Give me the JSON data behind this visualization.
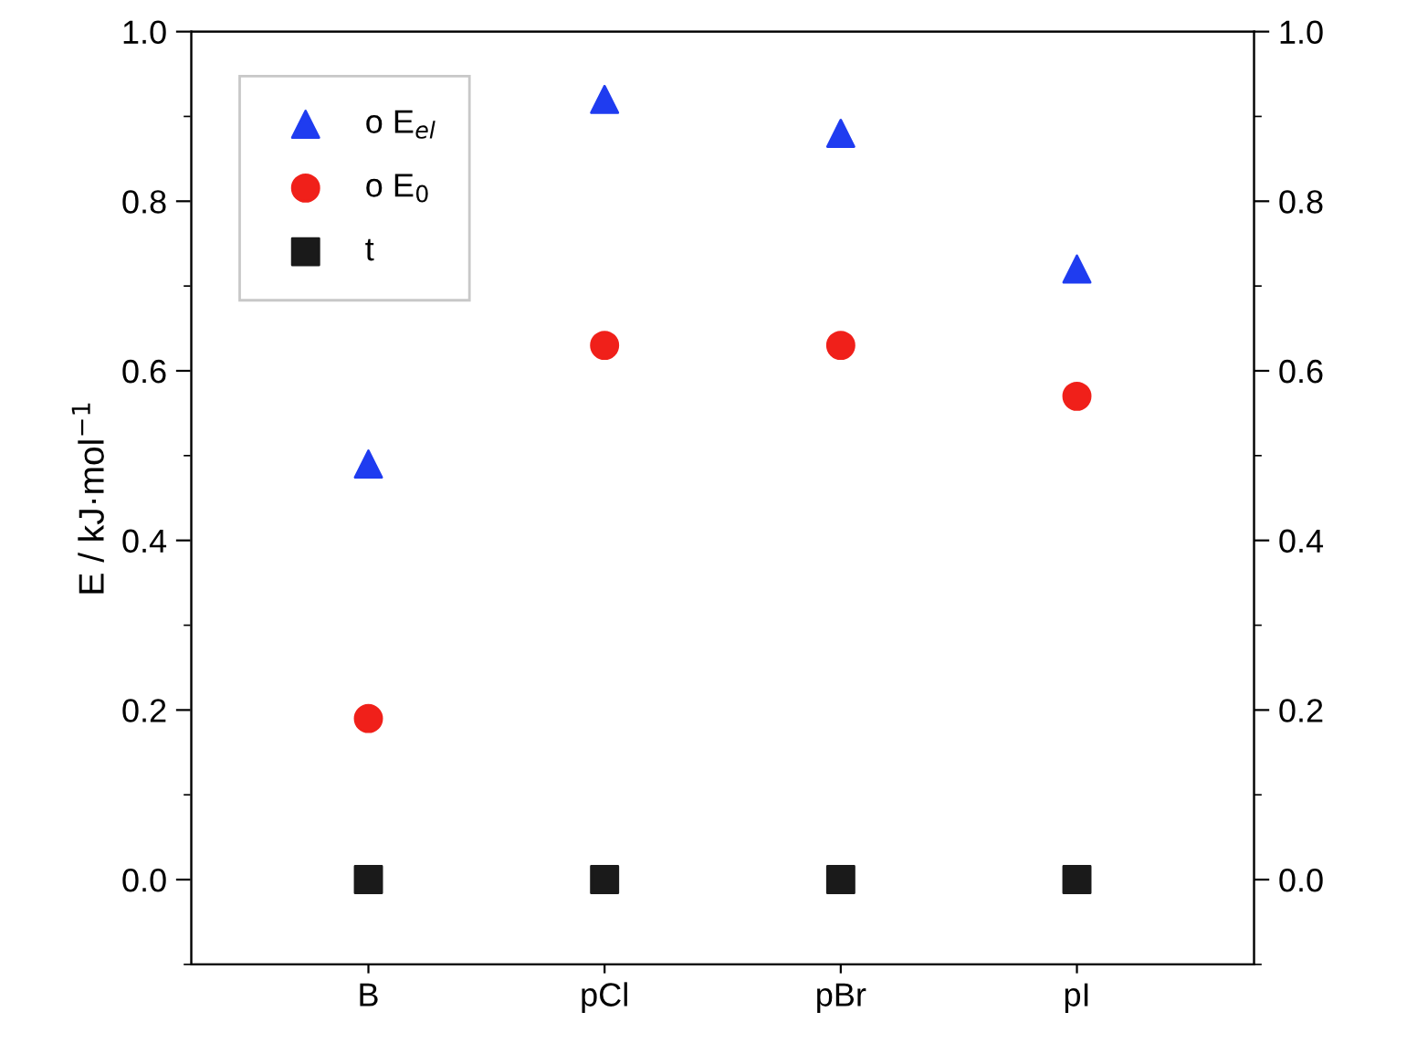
{
  "chart_data": {
    "type": "scatter",
    "ylabel": "E / kJ·mol$^{−1}$",
    "categories": [
      "B",
      "pCl",
      "pBr",
      "pI"
    ],
    "series": [
      {
        "name": "o E$_{el}$",
        "color": "#1f3cf0",
        "marker": "triangle",
        "values": [
          0.49,
          0.92,
          0.88,
          0.72
        ]
      },
      {
        "name": "o E$_{0}$",
        "color": "#f0201a",
        "marker": "circle",
        "values": [
          0.19,
          0.63,
          0.63,
          0.57
        ]
      },
      {
        "name": "t",
        "color": "#1a1a1a",
        "marker": "square",
        "values": [
          0,
          0,
          0,
          0
        ]
      }
    ],
    "ylim": [
      -0.1,
      1.0
    ],
    "yticks": [
      {
        "value": 0.0,
        "label": "0.0"
      },
      {
        "value": 0.2,
        "label": "0.2"
      },
      {
        "value": 0.4,
        "label": "0.4"
      },
      {
        "value": 0.6,
        "label": "0.6"
      },
      {
        "value": 0.8,
        "label": "0.8"
      },
      {
        "value": 1.0,
        "label": "1.0"
      }
    ],
    "y2lim": [
      -0.1,
      1.0
    ],
    "y2ticks": [
      {
        "value": 0.0,
        "label": "0.0"
      },
      {
        "value": 0.2,
        "label": "0.2"
      },
      {
        "value": 0.4,
        "label": "0.4"
      },
      {
        "value": 0.6,
        "label": "0.6"
      },
      {
        "value": 0.8,
        "label": "0.8"
      },
      {
        "value": 1.0,
        "label": "1.0"
      }
    ],
    "grid": false,
    "legend": "top left"
  }
}
